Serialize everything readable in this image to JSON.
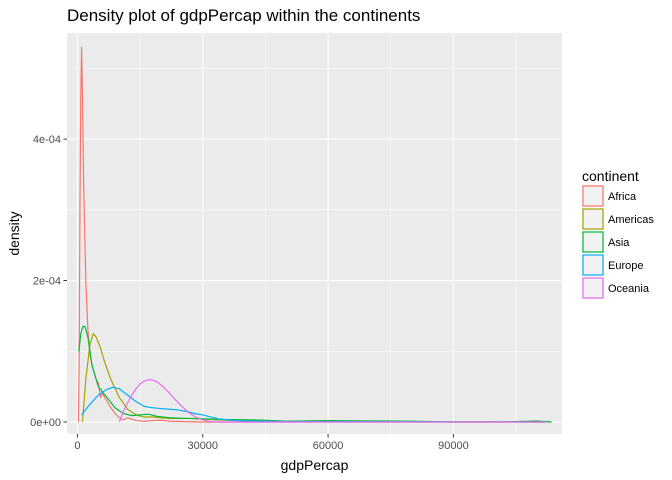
{
  "chart_data": {
    "type": "line",
    "title": "Density plot of gdpPercap within the continents",
    "xlabel": "gdpPercap",
    "ylabel": "density",
    "xlim": [
      -2500,
      116000
    ],
    "ylim": [
      -1.7e-05,
      0.00055
    ],
    "x_ticks": [
      0,
      30000,
      60000,
      90000
    ],
    "x_tick_labels": [
      "0",
      "30000",
      "60000",
      "90000"
    ],
    "y_ticks": [
      0,
      0.0002,
      0.0004
    ],
    "y_tick_labels": [
      "0e+00",
      "2e-04",
      "4e-04"
    ],
    "grid": true,
    "legend": {
      "title": "continent",
      "position": "right"
    },
    "series": [
      {
        "name": "Africa",
        "color": "#F8766D",
        "points": [
          [
            241,
            0
          ],
          [
            400,
            8e-05
          ],
          [
            600,
            0.0003
          ],
          [
            800,
            0.00046
          ],
          [
            1000,
            0.00053
          ],
          [
            1200,
            0.00046
          ],
          [
            1500,
            0.00033
          ],
          [
            2000,
            0.0002
          ],
          [
            2500,
            0.00013
          ],
          [
            3000,
            9.5e-05
          ],
          [
            3500,
            8e-05
          ],
          [
            4000,
            7e-05
          ],
          [
            4500,
            6e-05
          ],
          [
            5000,
            5.5e-05
          ],
          [
            5500,
            3.5e-05
          ],
          [
            6000,
            4e-05
          ],
          [
            7000,
            3e-05
          ],
          [
            8000,
            2e-05
          ],
          [
            9000,
            1.2e-05
          ],
          [
            10000,
            6e-06
          ],
          [
            11000,
            3e-06
          ],
          [
            12000,
            6e-06
          ],
          [
            13000,
            4e-06
          ],
          [
            14000,
            2e-06
          ],
          [
            16000,
            1e-06
          ],
          [
            18000,
            2e-06
          ],
          [
            20000,
            2.5e-06
          ],
          [
            22000,
            1e-06
          ],
          [
            30000,
            0
          ],
          [
            112000,
            0
          ]
        ]
      },
      {
        "name": "Americas",
        "color": "#A3A500",
        "points": [
          [
            1202,
            0
          ],
          [
            2000,
            6e-05
          ],
          [
            3000,
            0.00011
          ],
          [
            3800,
            0.000125
          ],
          [
            4500,
            0.00012
          ],
          [
            5500,
            0.000105
          ],
          [
            6500,
            8.5e-05
          ],
          [
            8000,
            6e-05
          ],
          [
            10000,
            3.5e-05
          ],
          [
            12000,
            1.8e-05
          ],
          [
            14000,
            1e-05
          ],
          [
            16000,
            7e-06
          ],
          [
            18000,
            7e-06
          ],
          [
            20000,
            6e-06
          ],
          [
            22000,
            5e-06
          ],
          [
            25000,
            5e-06
          ],
          [
            28000,
            5e-06
          ],
          [
            30000,
            4e-06
          ],
          [
            34000,
            3e-06
          ],
          [
            38000,
            2e-06
          ],
          [
            42000,
            1e-06
          ],
          [
            46000,
            5e-07
          ],
          [
            112000,
            0
          ]
        ]
      },
      {
        "name": "Asia",
        "color": "#00BA38",
        "points": [
          [
            331,
            0.0001
          ],
          [
            800,
            0.000125
          ],
          [
            1300,
            0.000135
          ],
          [
            1800,
            0.000135
          ],
          [
            2500,
            0.00012
          ],
          [
            3500,
            8e-05
          ],
          [
            5000,
            5e-05
          ],
          [
            7000,
            3.5e-05
          ],
          [
            9000,
            2e-05
          ],
          [
            11000,
            1.2e-05
          ],
          [
            13000,
            9e-06
          ],
          [
            15000,
            1e-05
          ],
          [
            17000,
            1.1e-05
          ],
          [
            19000,
            8e-06
          ],
          [
            22000,
            6e-06
          ],
          [
            26000,
            5e-06
          ],
          [
            30000,
            4.5e-06
          ],
          [
            35000,
            3.5e-06
          ],
          [
            40000,
            3e-06
          ],
          [
            45000,
            2.5e-06
          ],
          [
            50000,
            1e-06
          ],
          [
            60000,
            2e-06
          ],
          [
            70000,
            1.5e-06
          ],
          [
            80000,
            1e-06
          ],
          [
            90000,
            0
          ],
          [
            100000,
            0
          ],
          [
            108000,
            1e-06
          ],
          [
            110000,
            1.5e-06
          ],
          [
            113500,
            0
          ]
        ]
      },
      {
        "name": "Europe",
        "color": "#00B0F6",
        "points": [
          [
            974,
            1e-05
          ],
          [
            3000,
            2.5e-05
          ],
          [
            5000,
            3.8e-05
          ],
          [
            7000,
            4.6e-05
          ],
          [
            8500,
            4.9e-05
          ],
          [
            10000,
            4.7e-05
          ],
          [
            12000,
            3.8e-05
          ],
          [
            14000,
            2.9e-05
          ],
          [
            16000,
            2.2e-05
          ],
          [
            18000,
            2e-05
          ],
          [
            20000,
            1.9e-05
          ],
          [
            22000,
            1.8e-05
          ],
          [
            24000,
            1.7e-05
          ],
          [
            26000,
            1.5e-05
          ],
          [
            28000,
            1.2e-05
          ],
          [
            30000,
            1e-05
          ],
          [
            32000,
            7e-06
          ],
          [
            34000,
            4e-06
          ],
          [
            36000,
            3e-06
          ],
          [
            38000,
            2e-06
          ],
          [
            40000,
            1.5e-06
          ],
          [
            45000,
            1e-06
          ],
          [
            49000,
            5e-07
          ],
          [
            112000,
            0
          ]
        ]
      },
      {
        "name": "Oceania",
        "color": "#E76BF3",
        "points": [
          [
            10040,
            0
          ],
          [
            11000,
            1.5e-05
          ],
          [
            12000,
            2.7e-05
          ],
          [
            13000,
            3.8e-05
          ],
          [
            14000,
            4.7e-05
          ],
          [
            15000,
            5.4e-05
          ],
          [
            16000,
            5.8e-05
          ],
          [
            17500,
            6e-05
          ],
          [
            19000,
            5.7e-05
          ],
          [
            20500,
            5e-05
          ],
          [
            22000,
            4.1e-05
          ],
          [
            23500,
            3.1e-05
          ],
          [
            25000,
            2.2e-05
          ],
          [
            26500,
            1.4e-05
          ],
          [
            28000,
            8e-06
          ],
          [
            29500,
            4e-06
          ],
          [
            31000,
            1.5e-06
          ],
          [
            32000,
            5e-07
          ],
          [
            34400,
            0
          ],
          [
            112000,
            0
          ]
        ]
      }
    ]
  }
}
